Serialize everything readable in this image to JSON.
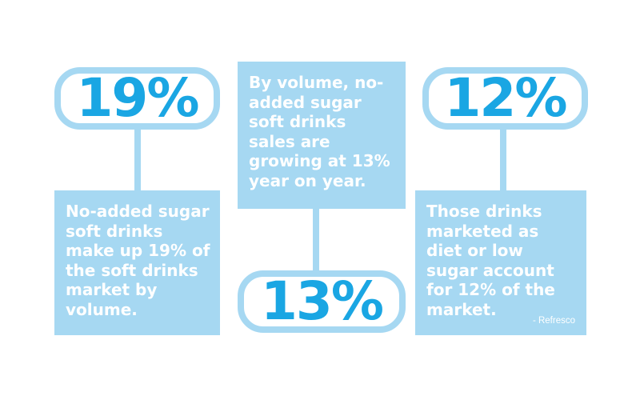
{
  "colors": {
    "light_blue": "#a6d8f2",
    "percent_blue": "#1aa6e3",
    "box_text": "#ffffff",
    "background": "#ffffff"
  },
  "stats": [
    {
      "value": "19%",
      "text": "No-added sugar soft drinks make up 19% of the soft drinks market by volume."
    },
    {
      "value": "13%",
      "text": "By volume, no-added sugar soft drinks sales are growing at 13% year on year."
    },
    {
      "value": "12%",
      "text": "Those drinks marketed as diet or low sugar account for 12% of the market."
    }
  ],
  "source_credit": "- Refresco"
}
